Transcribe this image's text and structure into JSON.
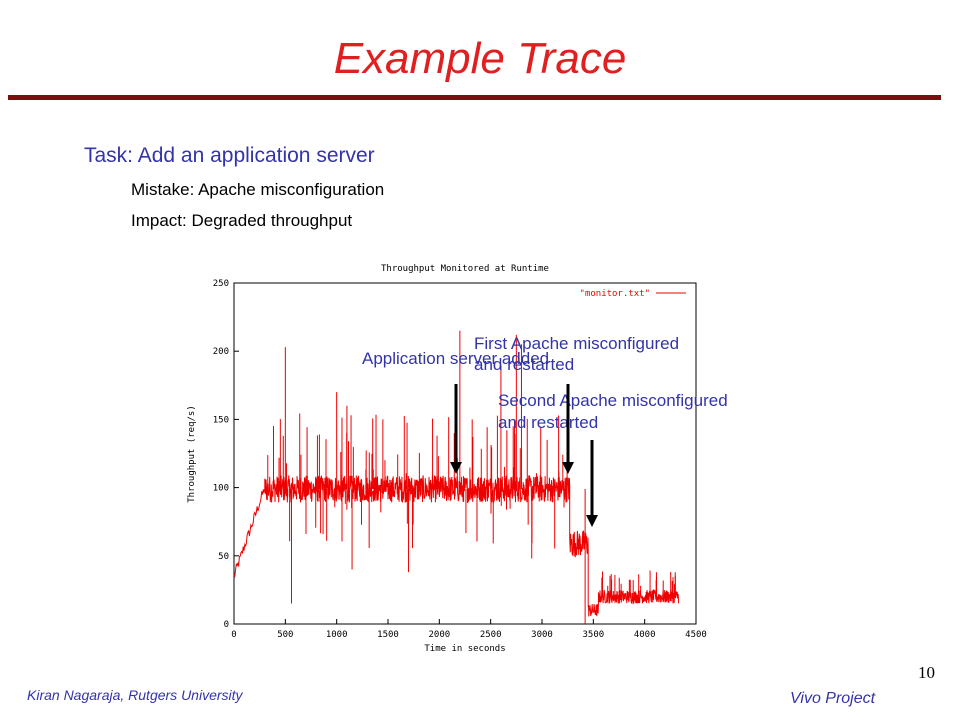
{
  "slide": {
    "title": "Example Trace",
    "task": "Task: Add an application server",
    "mistake": "Mistake: Apache misconfiguration",
    "impact": "Impact: Degraded throughput",
    "footer_left": "Kiran Nagaraja, Rutgers University",
    "footer_right": "Vivo Project",
    "page_number": "10"
  },
  "annotations": {
    "app_server": "Application server added",
    "first_apache_line1": "First Apache misconfigured",
    "first_apache_line2": "and restarted",
    "second_apache_line1": "Second Apache misconfigured",
    "second_apache_line2": "and restarted"
  },
  "colors": {
    "title": "#e02020",
    "text_blue": "#3333aa",
    "series": "#ee0000",
    "rule": "#7a0d0d"
  },
  "chart_data": {
    "type": "line",
    "title": "Throughput Monitored at Runtime",
    "xlabel": "Time in seconds",
    "ylabel": "Throughput (req/s)",
    "xlim": [
      0,
      4500
    ],
    "ylim": [
      0,
      250
    ],
    "xticks": [
      0,
      500,
      1000,
      1500,
      2000,
      2500,
      3000,
      3500,
      4000,
      4500
    ],
    "yticks": [
      0,
      50,
      100,
      150,
      200,
      250
    ],
    "legend_position": "top-right",
    "series": [
      {
        "name": "\"monitor.txt\"",
        "segments": [
          {
            "x": [
              0,
              300
            ],
            "y": [
              35,
              100
            ],
            "description_level": "ramp"
          },
          {
            "x": [
              300,
              3270
            ],
            "y_level": 99
          },
          {
            "x": [
              3270,
              3450
            ],
            "y_level": 59
          },
          {
            "x": [
              3450,
              3550
            ],
            "y_level": 10
          },
          {
            "x": [
              3550,
              4330
            ],
            "y_level": 20
          }
        ],
        "spikes": [
          {
            "x": 500,
            "y": 203
          },
          {
            "x": 560,
            "y": 15
          },
          {
            "x": 480,
            "y": 138
          },
          {
            "x": 1000,
            "y": 170
          },
          {
            "x": 1100,
            "y": 160
          },
          {
            "x": 1150,
            "y": 40
          },
          {
            "x": 1450,
            "y": 150
          },
          {
            "x": 1700,
            "y": 38
          },
          {
            "x": 2200,
            "y": 215
          },
          {
            "x": 2320,
            "y": 150
          },
          {
            "x": 2600,
            "y": 190
          },
          {
            "x": 2750,
            "y": 212
          },
          {
            "x": 2800,
            "y": 205
          },
          {
            "x": 2900,
            "y": 48
          },
          {
            "x": 3050,
            "y": 135
          },
          {
            "x": 3420,
            "y": 0
          }
        ]
      }
    ]
  }
}
